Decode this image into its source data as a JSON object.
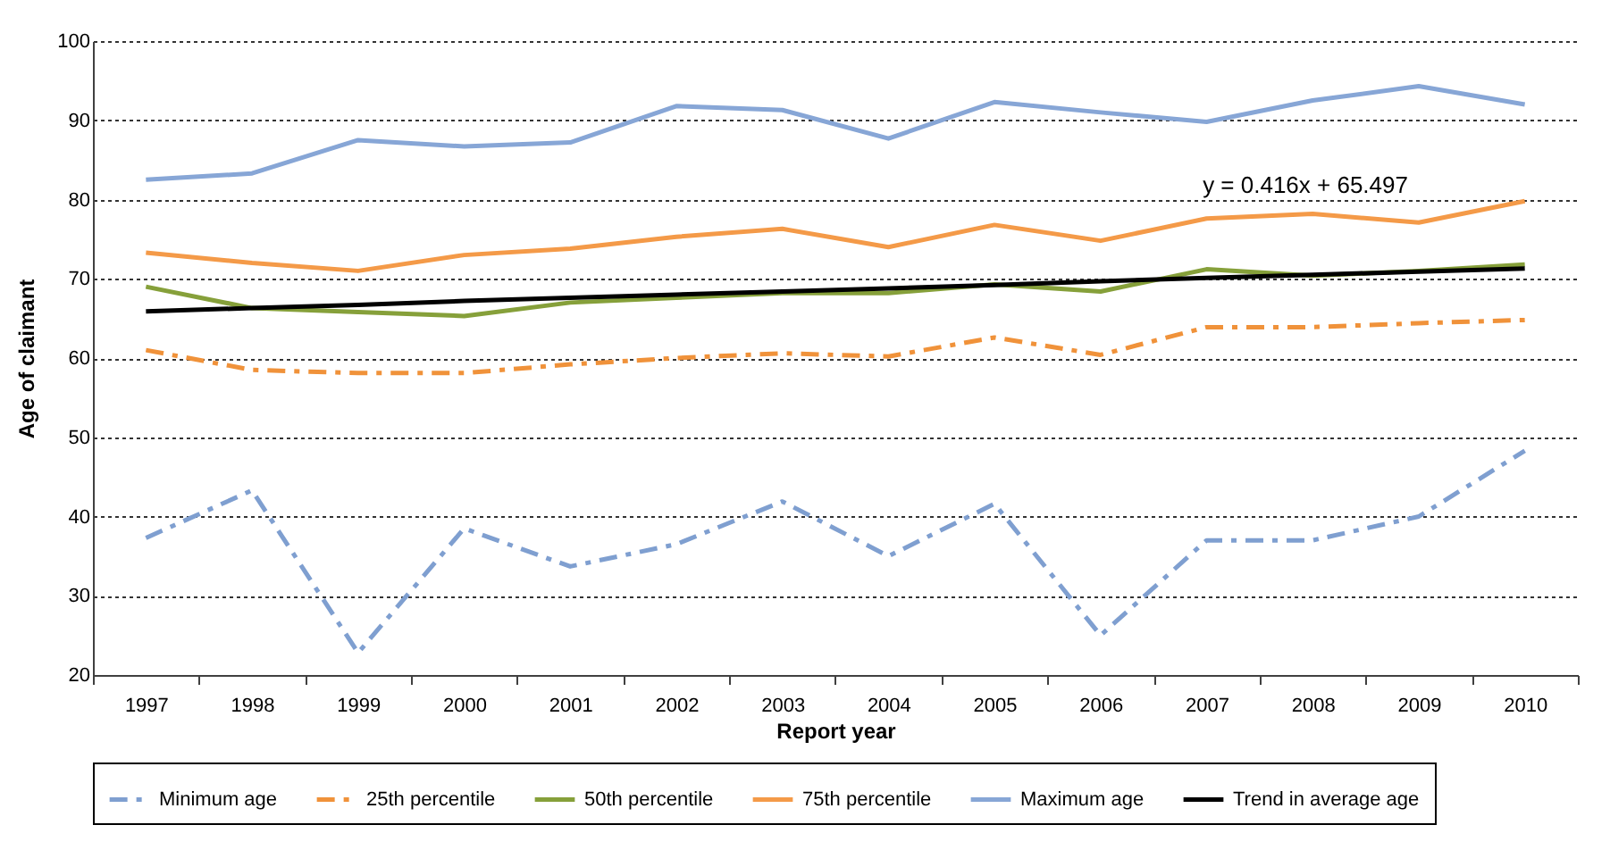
{
  "chart_data": {
    "type": "line",
    "xlabel": "Report year",
    "ylabel": "Age of claimant",
    "categories": [
      "1997",
      "1998",
      "1999",
      "2000",
      "2001",
      "2002",
      "2003",
      "2004",
      "2005",
      "2006",
      "2007",
      "2008",
      "2009",
      "2010"
    ],
    "series": [
      {
        "name": "Minimum age",
        "color": "#7f9fd0",
        "line_style": "dashdot",
        "values": [
          37.3,
          43.3,
          22.8,
          38.5,
          33.7,
          36.5,
          41.9,
          35,
          41.6,
          25,
          37,
          37,
          40,
          48.3
        ]
      },
      {
        "name": "25th percentile",
        "color": "#f0923a",
        "line_style": "dashdot",
        "values": [
          61,
          58.5,
          58.1,
          58.1,
          59.2,
          60,
          60.6,
          60.2,
          62.6,
          60.4,
          63.9,
          63.9,
          64.4,
          64.8
        ]
      },
      {
        "name": "50th percentile",
        "color": "#86a03a",
        "values": [
          69,
          66.3,
          65.8,
          65.3,
          67,
          67.6,
          68.2,
          68.2,
          69.3,
          68.4,
          71.2,
          70.4,
          71,
          71.8
        ]
      },
      {
        "name": "75th percentile",
        "color": "#f49a48",
        "values": [
          73.3,
          72,
          71,
          73,
          73.8,
          75.3,
          76.3,
          74,
          76.8,
          74.8,
          77.6,
          78.2,
          77.1,
          79.8
        ]
      },
      {
        "name": "Maximum age",
        "color": "#87a6d6",
        "values": [
          82.5,
          83.3,
          87.5,
          86.7,
          87.2,
          91.8,
          91.3,
          87.7,
          92.3,
          91,
          89.8,
          92.5,
          94.3,
          92
        ]
      },
      {
        "name": "Trend in average age",
        "color": "#000000",
        "values": [
          65.9,
          66.3,
          66.7,
          67.2,
          67.6,
          68,
          68.4,
          68.8,
          69.2,
          69.7,
          70.1,
          70.5,
          70.9,
          71.3
        ]
      }
    ],
    "ylim": [
      20,
      100
    ],
    "yticks": [
      20,
      30,
      40,
      50,
      60,
      70,
      80,
      90,
      100
    ],
    "grid": "y",
    "legend": "bottom",
    "marker": "none",
    "annotations": [
      "y = 0.416x + 65.497"
    ]
  }
}
